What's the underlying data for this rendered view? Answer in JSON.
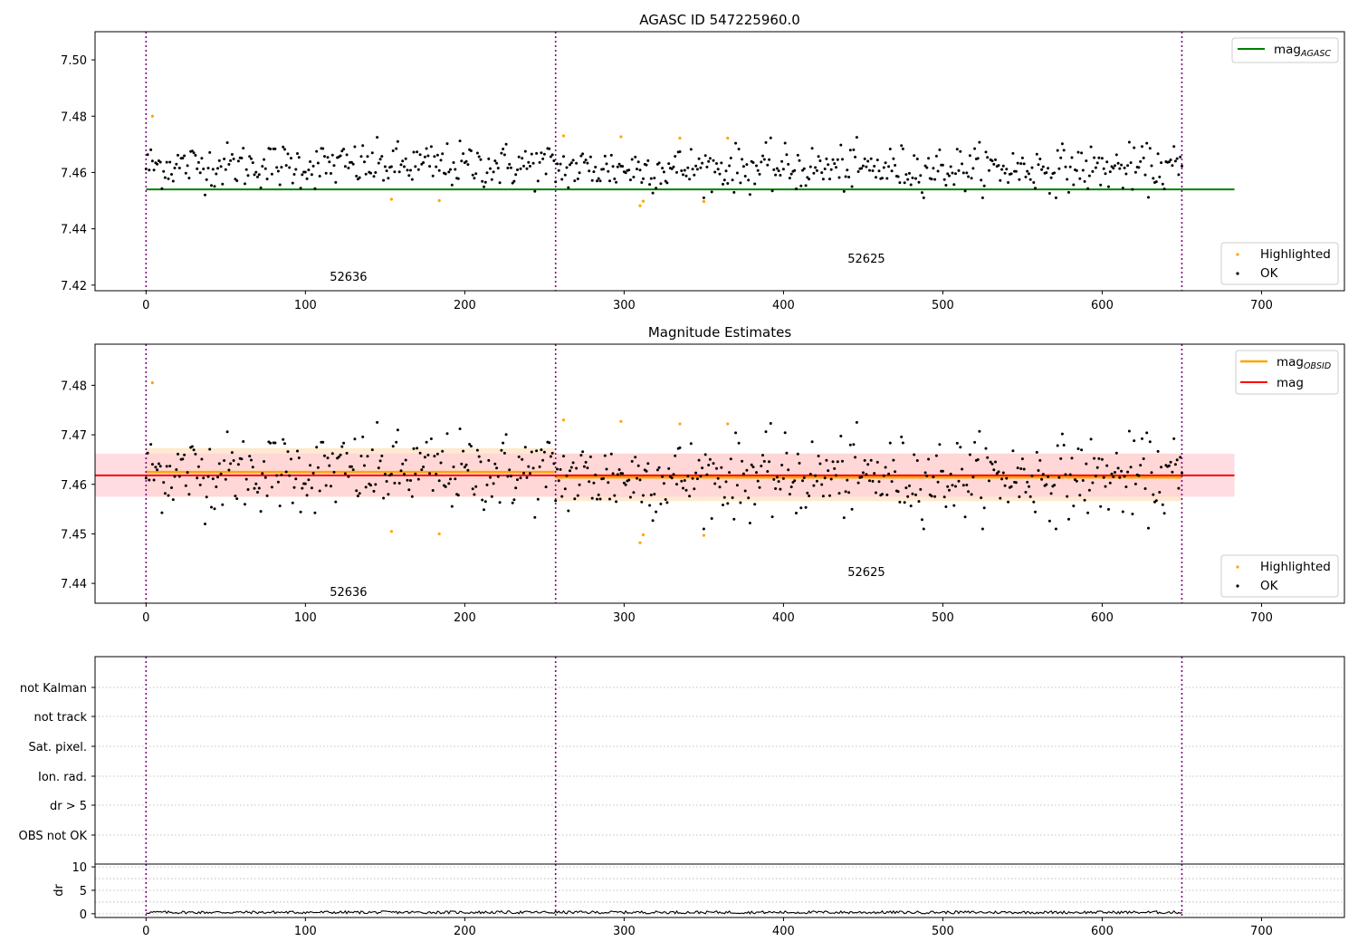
{
  "chart_data": [
    {
      "type": "scatter",
      "title": "AGASC ID 547225960.0",
      "xlim": [
        -32,
        752
      ],
      "ylim": [
        7.418,
        7.51
      ],
      "xticks": [
        0,
        100,
        200,
        300,
        400,
        500,
        600,
        700
      ],
      "yticks": [
        7.42,
        7.44,
        7.46,
        7.48,
        7.5
      ],
      "ytick_labels": [
        "7.42",
        "7.44",
        "7.46",
        "7.48",
        "7.50"
      ],
      "obs_boundaries": [
        0,
        257,
        650
      ],
      "obs_labels": [
        {
          "text": "52636",
          "x": 127,
          "y": 7.4215
        },
        {
          "text": "52625",
          "x": 452,
          "y": 7.428
        }
      ],
      "lines": [
        {
          "name": "mag_AGASC",
          "y": 7.454,
          "x": [
            0,
            683
          ],
          "color": "#008000"
        }
      ],
      "series": [
        {
          "name": "Highlighted",
          "color": "#ffa500",
          "points": [
            [
              4,
              7.48
            ],
            [
              154,
              7.4505
            ],
            [
              184,
              7.45
            ],
            [
              262,
              7.473
            ],
            [
              298,
              7.4727
            ],
            [
              310,
              7.4482
            ],
            [
              312,
              7.4498
            ],
            [
              335,
              7.4722
            ],
            [
              350,
              7.4497
            ],
            [
              365,
              7.4722
            ]
          ]
        },
        {
          "name": "OK",
          "color": "#000000",
          "series_ref": "ok_points"
        }
      ],
      "legend": {
        "upper": [
          "mag_AGASC"
        ],
        "lower": [
          "Highlighted",
          "OK"
        ],
        "upper_loc": "upper right",
        "lower_loc": "lower right"
      }
    },
    {
      "type": "scatter",
      "title": "Magnitude Estimates",
      "xlim": [
        -32,
        752
      ],
      "ylim": [
        7.436,
        7.4883
      ],
      "xticks": [
        0,
        100,
        200,
        300,
        400,
        500,
        600,
        700
      ],
      "yticks": [
        7.44,
        7.45,
        7.46,
        7.47,
        7.48
      ],
      "ytick_labels": [
        "7.44",
        "7.45",
        "7.46",
        "7.47",
        "7.48"
      ],
      "obs_boundaries": [
        0,
        257,
        650
      ],
      "obs_labels": [
        {
          "text": "52636",
          "x": 127,
          "y": 7.4375
        },
        {
          "text": "52625",
          "x": 452,
          "y": 7.4415
        }
      ],
      "lines": [
        {
          "name": "mag_OBSID",
          "color": "#ffa500",
          "segments": [
            {
              "x": [
                0,
                257
              ],
              "y": 7.4625,
              "band": [
                7.4575,
                7.4673
              ]
            },
            {
              "x": [
                257,
                650
              ],
              "y": 7.4614,
              "band": [
                7.4566,
                7.4662
              ]
            }
          ]
        },
        {
          "name": "mag",
          "color": "#ff0000",
          "x": [
            -32,
            683
          ],
          "y": 7.4618,
          "band": [
            7.4575,
            7.4662
          ]
        }
      ],
      "series": [
        {
          "name": "Highlighted",
          "color": "#ffa500",
          "points": [
            [
              4,
              7.4805
            ],
            [
              154,
              7.4505
            ],
            [
              184,
              7.45
            ],
            [
              262,
              7.473
            ],
            [
              298,
              7.4727
            ],
            [
              310,
              7.4482
            ],
            [
              312,
              7.4498
            ],
            [
              335,
              7.4722
            ],
            [
              350,
              7.4497
            ],
            [
              365,
              7.4722
            ]
          ]
        },
        {
          "name": "OK",
          "color": "#000000",
          "series_ref": "ok_points"
        }
      ],
      "legend": {
        "upper": [
          "mag_OBSID",
          "mag"
        ],
        "lower": [
          "Highlighted",
          "OK"
        ],
        "upper_loc": "upper right",
        "lower_loc": "lower right"
      }
    },
    {
      "type": "scatter",
      "title": "",
      "xlim": [
        -32,
        752
      ],
      "categories": [
        "not Kalman",
        "not track",
        "Sat. pixel.",
        "Ion. rad.",
        "dr > 5",
        "OBS not OK"
      ],
      "obs_boundaries": [
        0,
        257,
        650
      ],
      "grid": true
    },
    {
      "type": "line",
      "title": "",
      "ylabel": "dr",
      "xlim": [
        -32,
        752
      ],
      "ylim": [
        -0.8,
        10.6
      ],
      "yticks": [
        0,
        5,
        10
      ],
      "ytick_labels": [
        "0",
        "5",
        "10"
      ],
      "xticks": [
        0,
        100,
        200,
        300,
        400,
        500,
        600,
        700
      ],
      "obs_boundaries": [
        0,
        257,
        650
      ],
      "series": [
        {
          "name": "dr",
          "color": "#000000",
          "values_range": [
            0.0,
            0.6
          ],
          "n": 651
        }
      ]
    }
  ],
  "colors": {
    "agasc_line": "#008000",
    "obsid_line": "#ffa500",
    "mag_line": "#ff0000",
    "band_obsid": "#ffdab0",
    "band_mag": "#ffd0d8",
    "highlight": "#ffa500",
    "ok": "#000000",
    "boundary": "#800080"
  },
  "legend_labels": {
    "mag_agasc_main": "mag",
    "mag_agasc_sub": "AGASC",
    "mag_obsid_main": "mag",
    "mag_obsid_sub": "OBSID",
    "mag": "mag",
    "highlighted": "Highlighted",
    "ok": "OK"
  }
}
